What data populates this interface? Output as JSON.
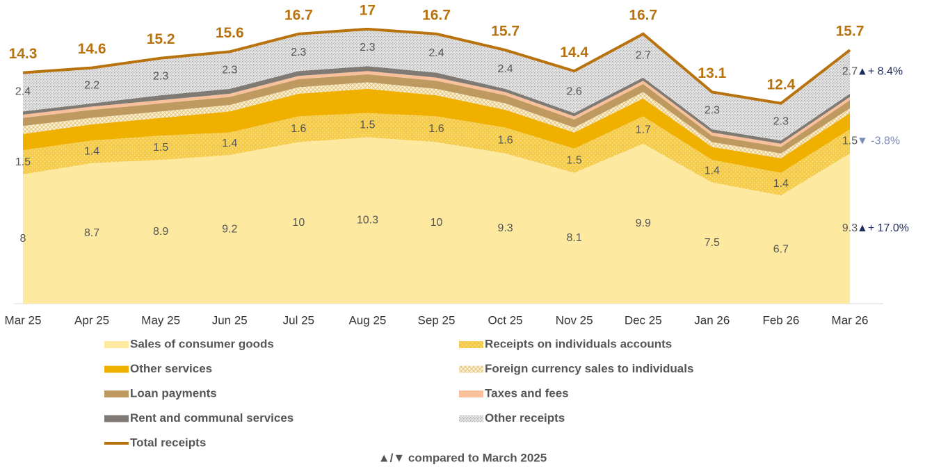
{
  "chart_data": {
    "type": "stacked_area",
    "categories": [
      "Mar 25",
      "Apr 25",
      "May 25",
      "Jun 25",
      "Jul 25",
      "Aug 25",
      "Sep 25",
      "Oct 25",
      "Nov 25",
      "Dec 25",
      "Jan 26",
      "Feb 26",
      "Mar 26"
    ],
    "ylim": [
      0,
      18.8
    ],
    "series": [
      {
        "name": "Sales of consumer goods",
        "color": "#fde9a0",
        "pattern": "none",
        "show_labels": true,
        "values": [
          8.0,
          8.7,
          8.9,
          9.2,
          10.0,
          10.3,
          10.0,
          9.3,
          8.1,
          9.9,
          7.5,
          6.7,
          9.3
        ],
        "change_label": "▲+ 17.0%",
        "change_color": "#1f2d5c"
      },
      {
        "name": "Receipts on individuals accounts",
        "color": "#f5cb4a",
        "pattern": "dots",
        "show_labels": true,
        "values": [
          1.5,
          1.4,
          1.5,
          1.4,
          1.6,
          1.5,
          1.6,
          1.6,
          1.5,
          1.7,
          1.4,
          1.4,
          1.5
        ],
        "change_label": "▼ -3.8%",
        "change_color": "#7a8db8"
      },
      {
        "name": "Other services",
        "color": "#f0b000",
        "pattern": "none",
        "show_labels": false,
        "values": [
          1.0,
          1.0,
          1.1,
          1.3,
          1.4,
          1.5,
          1.3,
          1.1,
          1.0,
          1.1,
          0.8,
          0.9,
          1.0
        ]
      },
      {
        "name": "Foreign currency sales to individuals",
        "color": "#f7e3b5",
        "pattern": "cross",
        "show_labels": false,
        "values": [
          0.5,
          0.4,
          0.4,
          0.4,
          0.4,
          0.4,
          0.4,
          0.4,
          0.3,
          0.4,
          0.3,
          0.3,
          0.3
        ]
      },
      {
        "name": "Loan payments",
        "color": "#bf9a60",
        "pattern": "none",
        "show_labels": false,
        "values": [
          0.5,
          0.5,
          0.5,
          0.5,
          0.5,
          0.5,
          0.5,
          0.5,
          0.5,
          0.5,
          0.4,
          0.4,
          0.5
        ]
      },
      {
        "name": "Taxes and fees",
        "color": "#f9c19b",
        "pattern": "none",
        "show_labels": false,
        "values": [
          0.2,
          0.2,
          0.2,
          0.2,
          0.2,
          0.2,
          0.2,
          0.2,
          0.2,
          0.2,
          0.2,
          0.2,
          0.2
        ]
      },
      {
        "name": "Rent and communal services",
        "color": "#7f7a74",
        "pattern": "none",
        "show_labels": false,
        "values": [
          0.2,
          0.2,
          0.3,
          0.3,
          0.3,
          0.3,
          0.3,
          0.2,
          0.2,
          0.2,
          0.2,
          0.2,
          0.2
        ]
      },
      {
        "name": "Other receipts",
        "color": "#d4d4d4",
        "pattern": "stipple",
        "show_labels": true,
        "values": [
          2.4,
          2.2,
          2.3,
          2.3,
          2.3,
          2.3,
          2.4,
          2.4,
          2.6,
          2.7,
          2.3,
          2.3,
          2.7
        ],
        "change_label": "▲+ 8.4%",
        "change_color": "#1f2d5c"
      }
    ],
    "total": {
      "name": "Total receipts",
      "color": "#b8730f",
      "values": [
        14.3,
        14.6,
        15.2,
        15.6,
        16.7,
        17.0,
        16.7,
        15.7,
        14.4,
        16.7,
        13.1,
        12.4,
        15.7
      ]
    },
    "note": "▲/▼ compared to March 2025"
  }
}
